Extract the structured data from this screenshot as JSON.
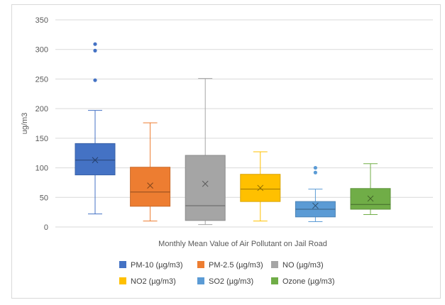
{
  "chart_data": {
    "type": "box",
    "title": "",
    "xlabel": "Monthly Mean Value of Air Pollutant on Jail Road",
    "ylabel": "ug/m3",
    "ylim": [
      0,
      350
    ],
    "yticks": [
      0,
      50,
      100,
      150,
      200,
      250,
      300,
      350
    ],
    "grid": true,
    "legend_position": "bottom",
    "series": [
      {
        "name": "PM-10 (µg/m3)",
        "color": "#4472C4",
        "whisker_low": 22,
        "q1": 88,
        "median": 113,
        "q3": 141,
        "whisker_high": 197,
        "mean": 113,
        "outliers": [
          248,
          298,
          309
        ]
      },
      {
        "name": "PM-2.5 (µg/m3)",
        "color": "#ED7D31",
        "whisker_low": 10,
        "q1": 35,
        "median": 59,
        "q3": 101,
        "whisker_high": 176,
        "mean": 70,
        "outliers": []
      },
      {
        "name": "NO (µg/m3)",
        "color": "#A5A5A5",
        "whisker_low": 4,
        "q1": 11,
        "median": 36,
        "q3": 121,
        "whisker_high": 251,
        "mean": 73,
        "outliers": []
      },
      {
        "name": "NO2 (µg/m3)",
        "color": "#FFC000",
        "whisker_low": 10,
        "q1": 43,
        "median": 64,
        "q3": 89,
        "whisker_high": 127,
        "mean": 66,
        "outliers": []
      },
      {
        "name": "SO2 (µg/m3)",
        "color": "#5B9BD5",
        "whisker_low": 9,
        "q1": 17,
        "median": 30,
        "q3": 43,
        "whisker_high": 64,
        "mean": 36,
        "outliers": [
          92,
          100
        ]
      },
      {
        "name": "Ozone (µg/m3)",
        "color": "#70AD47",
        "whisker_low": 21,
        "q1": 30,
        "median": 38,
        "q3": 65,
        "whisker_high": 107,
        "mean": 48,
        "outliers": []
      }
    ]
  }
}
